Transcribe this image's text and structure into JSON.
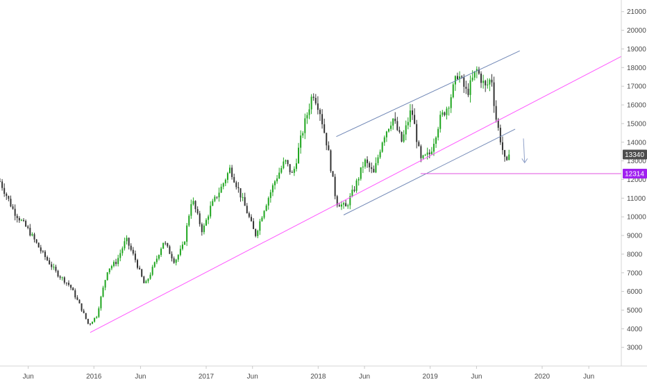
{
  "chart_data": {
    "type": "candlestick",
    "title": "",
    "xlabel": "",
    "ylabel": "",
    "y_axis_position": "right",
    "grid": false,
    "x_range": [
      "2015-03-01",
      "2020-09-15"
    ],
    "ylim": [
      2300,
      21400
    ],
    "y_ticks": [
      3000,
      4000,
      5000,
      6000,
      7000,
      8000,
      9000,
      10000,
      11000,
      12000,
      13000,
      14000,
      15000,
      16000,
      17000,
      18000,
      19000,
      20000,
      21000
    ],
    "x_ticks": [
      {
        "label": "Jun",
        "date": "2015-06-01"
      },
      {
        "label": "2016",
        "date": "2016-01-01"
      },
      {
        "label": "Jun",
        "date": "2016-06-01"
      },
      {
        "label": "2017",
        "date": "2017-01-01"
      },
      {
        "label": "Jun",
        "date": "2017-06-01"
      },
      {
        "label": "2018",
        "date": "2018-01-01"
      },
      {
        "label": "Jun",
        "date": "2018-06-01"
      },
      {
        "label": "2019",
        "date": "2019-01-01"
      },
      {
        "label": "Jun",
        "date": "2019-06-01"
      },
      {
        "label": "2020",
        "date": "2020-01-01"
      },
      {
        "label": "Jun",
        "date": "2020-06-01"
      }
    ],
    "colors": {
      "up": "#1ea51e",
      "down": "#333333",
      "trendline": "#ff55ff",
      "channel": "#6f86b5",
      "support": "#e050e0",
      "last_badge": "#4d4d4d",
      "level_badge": "#a020f0",
      "arrow": "#8fa0c8"
    },
    "price_path": [
      [
        "2015-03-01",
        11900
      ],
      [
        "2015-04-15",
        10300
      ],
      [
        "2015-06-01",
        9300
      ],
      [
        "2015-07-15",
        8100
      ],
      [
        "2015-09-01",
        7000
      ],
      [
        "2015-10-15",
        6300
      ],
      [
        "2015-11-15",
        5300
      ],
      [
        "2015-12-15",
        4200
      ],
      [
        "2016-01-10",
        4700
      ],
      [
        "2016-02-15",
        7200
      ],
      [
        "2016-03-15",
        7600
      ],
      [
        "2016-04-15",
        8800
      ],
      [
        "2016-05-15",
        7700
      ],
      [
        "2016-06-15",
        6300
      ],
      [
        "2016-07-15",
        7400
      ],
      [
        "2016-08-15",
        8700
      ],
      [
        "2016-09-20",
        7600
      ],
      [
        "2016-10-20",
        8500
      ],
      [
        "2016-11-15",
        11000
      ],
      [
        "2016-12-20",
        9200
      ],
      [
        "2017-01-15",
        10500
      ],
      [
        "2017-02-20",
        11600
      ],
      [
        "2017-03-20",
        12600
      ],
      [
        "2017-04-20",
        11300
      ],
      [
        "2017-05-20",
        10000
      ],
      [
        "2017-06-10",
        9000
      ],
      [
        "2017-07-10",
        10500
      ],
      [
        "2017-08-15",
        12000
      ],
      [
        "2017-09-15",
        13000
      ],
      [
        "2017-10-10",
        12200
      ],
      [
        "2017-11-10",
        14500
      ],
      [
        "2017-12-15",
        16700
      ],
      [
        "2018-01-05",
        15800
      ],
      [
        "2018-02-01",
        13700
      ],
      [
        "2018-03-01",
        10800
      ],
      [
        "2018-04-01",
        10500
      ],
      [
        "2018-05-01",
        11600
      ],
      [
        "2018-06-01",
        13000
      ],
      [
        "2018-07-01",
        12300
      ],
      [
        "2018-08-01",
        14300
      ],
      [
        "2018-09-01",
        15300
      ],
      [
        "2018-10-01",
        14000
      ],
      [
        "2018-11-01",
        15800
      ],
      [
        "2018-12-01",
        13000
      ],
      [
        "2019-01-01",
        13400
      ],
      [
        "2019-02-01",
        15200
      ],
      [
        "2019-03-01",
        16000
      ],
      [
        "2019-04-01",
        17700
      ],
      [
        "2019-05-01",
        16600
      ],
      [
        "2019-06-01",
        17900
      ],
      [
        "2019-07-01",
        16900
      ],
      [
        "2019-07-20",
        17500
      ],
      [
        "2019-08-01",
        15500
      ],
      [
        "2019-08-20",
        14000
      ],
      [
        "2019-09-05",
        12700
      ],
      [
        "2019-09-20",
        13340
      ]
    ],
    "annotations": [
      {
        "type": "trendline",
        "points": [
          [
            "2015-12-20",
            3800
          ],
          [
            "2020-09-15",
            18600
          ]
        ]
      },
      {
        "type": "channel_upper",
        "points": [
          [
            "2018-03-01",
            14300
          ],
          [
            "2019-10-20",
            18900
          ]
        ]
      },
      {
        "type": "channel_lower",
        "points": [
          [
            "2018-03-25",
            10100
          ],
          [
            "2019-10-05",
            14700
          ]
        ]
      },
      {
        "type": "support",
        "points": [
          [
            "2018-12-01",
            12314
          ],
          [
            "2020-09-15",
            12314
          ]
        ]
      },
      {
        "type": "arrow_down",
        "points": [
          [
            "2019-11-01",
            14200
          ],
          [
            "2019-11-05",
            12900
          ]
        ]
      }
    ],
    "last_price_label": "13340",
    "level_label": "12314",
    "last_price": 13340,
    "level_price": 12314
  }
}
